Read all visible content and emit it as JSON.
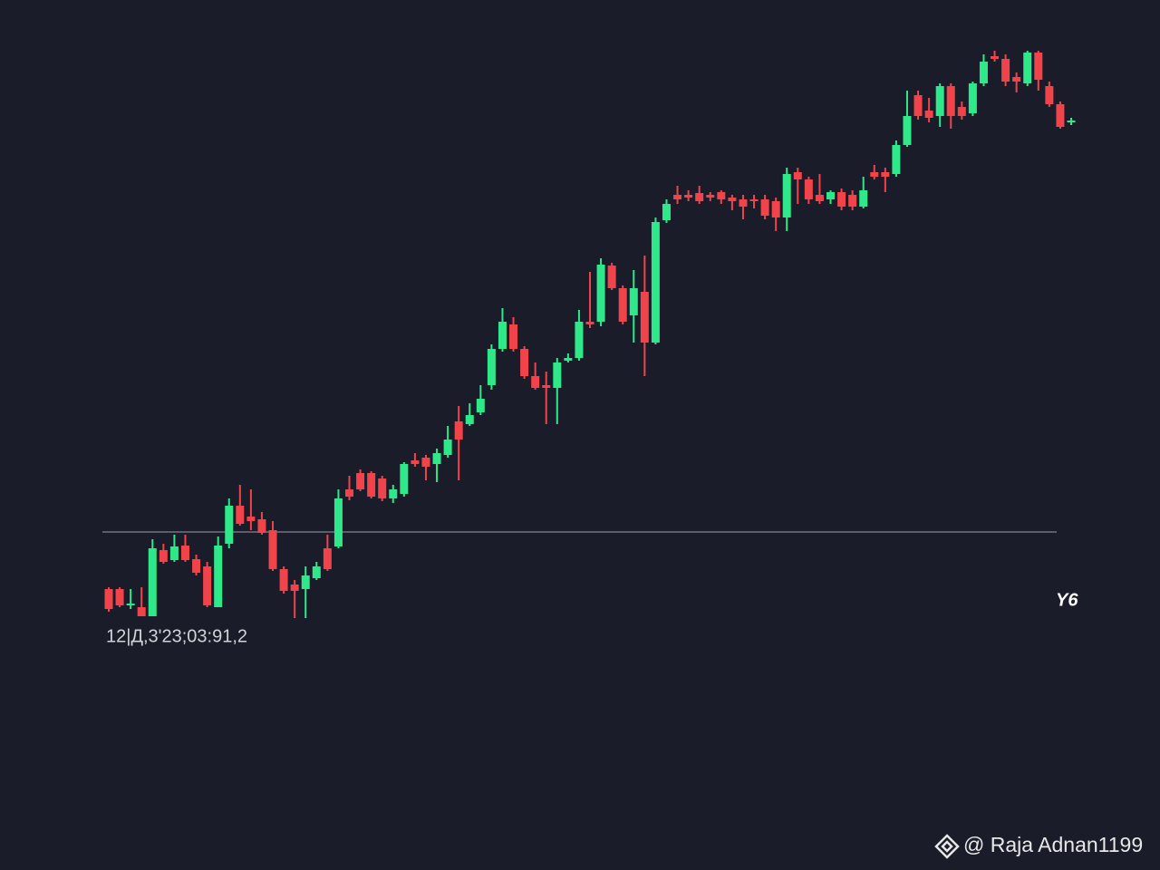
{
  "chart_data": {
    "type": "candlestick",
    "open": [
      5.0,
      5.0,
      3.2,
      3.0,
      2.0,
      9.3,
      8.2,
      9.8,
      8.3,
      7.5,
      3.0,
      10.0,
      14.2,
      13.0,
      12.7,
      11.5,
      7.2,
      5.5,
      5.0,
      6.2,
      9.5,
      9.7,
      16.0,
      17.8,
      17.8,
      17.2,
      15.0,
      15.5,
      19.2,
      19.5,
      18.8,
      19.8,
      23.5,
      23.2,
      24.5,
      27.5,
      31.5,
      34.2,
      31.5,
      28.5,
      27.5,
      27.2,
      30.2,
      30.5,
      34.5,
      34.5,
      40.7,
      38.2,
      35.2,
      37.8,
      32.2,
      45.7,
      48.5,
      48.5,
      48.7,
      48.5,
      48.8,
      48.2,
      48.0,
      48.0,
      48.0,
      47.8,
      46.0,
      51.0,
      50.2,
      48.5,
      48.0,
      48.8,
      48.5,
      47.2,
      51.0,
      51.0,
      50.8,
      54.0,
      59.5,
      57.8,
      57.2,
      60.5,
      58.2,
      57.5,
      60.8,
      63.8,
      63.5,
      61.5,
      60.8,
      64.2,
      60.5,
      58.5,
      56.5
    ],
    "high": [
      5.2,
      5.2,
      5.0,
      5.2,
      10.5,
      10.0,
      11.0,
      11.0,
      8.8,
      8.0,
      10.8,
      15.0,
      16.5,
      16.0,
      13.5,
      12.5,
      7.5,
      6.0,
      7.5,
      8.0,
      11.0,
      16.0,
      17.5,
      18.2,
      18.0,
      17.5,
      16.5,
      19.0,
      20.0,
      19.8,
      20.5,
      23.0,
      25.2,
      25.5,
      27.5,
      32.0,
      36.0,
      35.0,
      31.8,
      30.0,
      29.0,
      30.5,
      31.0,
      35.8,
      40.0,
      41.5,
      41.0,
      38.5,
      40.2,
      41.8,
      46.0,
      48.0,
      49.5,
      49.0,
      49.5,
      48.8,
      49.0,
      48.5,
      48.5,
      48.5,
      48.5,
      48.2,
      51.5,
      51.5,
      50.5,
      50.8,
      49.0,
      49.2,
      49.0,
      50.5,
      51.8,
      51.5,
      54.5,
      60.0,
      60.0,
      59.2,
      60.8,
      60.8,
      58.8,
      61.0,
      64.0,
      64.4,
      64.0,
      62.0,
      64.4,
      64.4,
      61.0,
      58.8,
      57.0
    ],
    "low": [
      2.5,
      3.0,
      2.8,
      2.0,
      2.0,
      7.8,
      8.0,
      8.0,
      6.5,
      3.0,
      3.0,
      9.5,
      12.0,
      11.5,
      11.0,
      7.0,
      4.5,
      1.8,
      1.8,
      6.0,
      7.0,
      9.5,
      14.8,
      15.8,
      15.0,
      14.7,
      14.5,
      15.2,
      18.5,
      17.0,
      16.8,
      19.5,
      17.0,
      23.0,
      24.2,
      27.0,
      31.2,
      31.2,
      28.2,
      27.0,
      23.2,
      23.2,
      30.0,
      30.2,
      33.8,
      34.0,
      38.0,
      34.2,
      32.2,
      28.5,
      32.0,
      45.4,
      47.5,
      47.8,
      47.5,
      47.8,
      47.5,
      46.8,
      45.8,
      47.0,
      45.8,
      44.5,
      44.5,
      47.5,
      47.5,
      47.5,
      47.5,
      46.8,
      46.8,
      47.0,
      50.2,
      48.8,
      50.5,
      53.8,
      56.8,
      56.5,
      56.0,
      55.8,
      56.8,
      57.2,
      60.5,
      63.2,
      60.5,
      59.8,
      60.5,
      60.0,
      58.2,
      55.8,
      56.2
    ],
    "close": [
      2.8,
      3.2,
      3.4,
      2.0,
      9.5,
      8.0,
      9.7,
      8.2,
      6.8,
      3.2,
      9.8,
      14.2,
      12.2,
      12.5,
      11.2,
      7.2,
      4.8,
      4.8,
      6.5,
      7.5,
      7.2,
      15.0,
      15.2,
      16.0,
      15.2,
      15.0,
      16.0,
      18.8,
      18.8,
      18.5,
      20.0,
      21.5,
      21.5,
      24.2,
      26.0,
      31.5,
      34.5,
      31.5,
      28.5,
      27.2,
      27.2,
      30.0,
      30.5,
      34.5,
      34.2,
      40.8,
      38.2,
      34.5,
      38.2,
      32.2,
      45.5,
      47.5,
      48.0,
      48.2,
      47.8,
      48.2,
      48.0,
      47.8,
      47.2,
      47.8,
      46.2,
      46.0,
      50.8,
      50.2,
      48.0,
      47.8,
      48.8,
      47.2,
      47.2,
      49.0,
      50.5,
      50.5,
      54.0,
      57.2,
      57.2,
      57.0,
      60.5,
      57.2,
      57.2,
      60.8,
      63.2,
      63.5,
      61.0,
      61.0,
      64.2,
      61.2,
      58.5,
      56.0,
      56.7
    ],
    "ylim": [
      0,
      66
    ],
    "up_color": "#2ee88a",
    "down_color": "#f0434a",
    "hline": 11.3,
    "hline_color": "#9aa0a6",
    "annotations": [
      "12|Д,3'23;03:91,2",
      "Y6"
    ]
  },
  "watermark": "@ Raja Adnan1199"
}
